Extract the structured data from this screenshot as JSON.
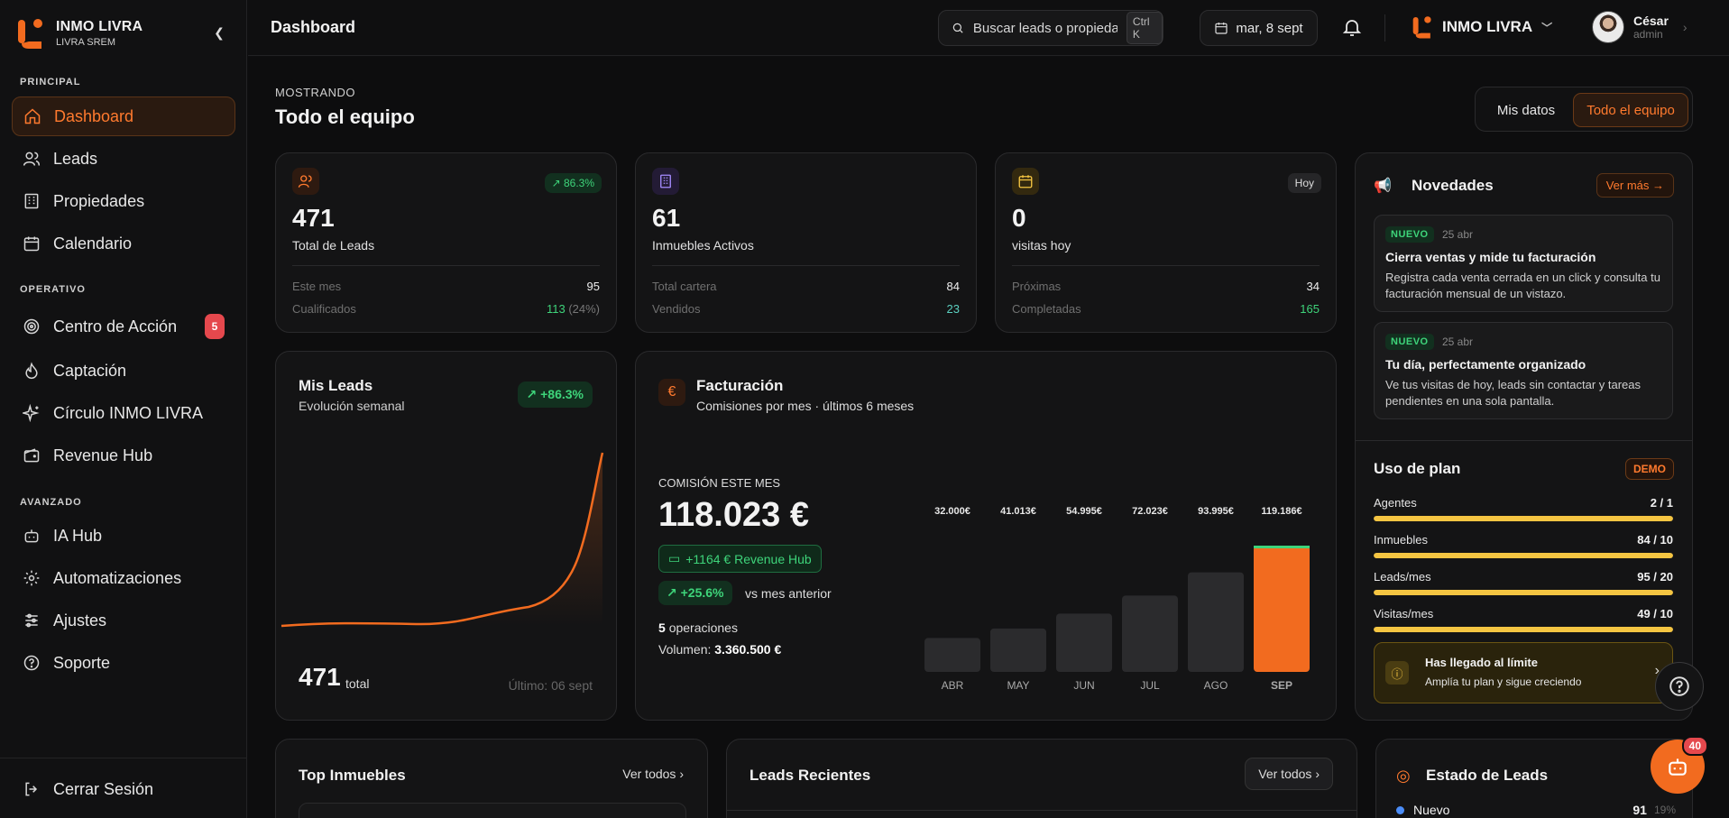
{
  "brand": {
    "name": "INMO LIVRA",
    "sub": "LIVRA SREM"
  },
  "sidebar": {
    "sections": [
      {
        "label": "PRINCIPAL"
      },
      {
        "label": "OPERATIVO"
      },
      {
        "label": "AVANZADO"
      }
    ],
    "items": [
      {
        "label": "Dashboard",
        "icon": "home-icon"
      },
      {
        "label": "Leads",
        "icon": "users-icon"
      },
      {
        "label": "Propiedades",
        "icon": "building-icon"
      },
      {
        "label": "Calendario",
        "icon": "calendar-icon"
      },
      {
        "label": "Centro de Acción",
        "icon": "target-icon",
        "badge": "5"
      },
      {
        "label": "Captación",
        "icon": "flame-icon"
      },
      {
        "label": "Círculo INMO LIVRA",
        "icon": "sparkle-icon"
      },
      {
        "label": "Revenue Hub",
        "icon": "wallet-icon"
      },
      {
        "label": "IA Hub",
        "icon": "robot-icon"
      },
      {
        "label": "Automatizaciones",
        "icon": "gear-icon"
      },
      {
        "label": "Ajustes",
        "icon": "sliders-icon"
      },
      {
        "label": "Soporte",
        "icon": "help-icon"
      }
    ],
    "logout": "Cerrar Sesión"
  },
  "topbar": {
    "title": "Dashboard",
    "search_placeholder": "Buscar leads o propiedades",
    "shortcut": "Ctrl K",
    "date": "mar, 8 sept",
    "org": "INMO LIVRA",
    "user_name": "César",
    "user_role": "admin"
  },
  "view": {
    "showing": "MOSTRANDO",
    "title": "Todo el equipo",
    "toggle_a": "Mis datos",
    "toggle_b": "Todo el equipo"
  },
  "stats": [
    {
      "value": "471",
      "label": "Total de Leads",
      "badge": "86.3%",
      "rows": [
        {
          "k": "Este mes",
          "v": "95"
        },
        {
          "k": "Cualificados",
          "v": "113",
          "extra": "(24%)"
        }
      ]
    },
    {
      "value": "61",
      "label": "Inmuebles Activos",
      "rows": [
        {
          "k": "Total cartera",
          "v": "84"
        },
        {
          "k": "Vendidos",
          "v": "23"
        }
      ]
    },
    {
      "value": "0",
      "label": "visitas hoy",
      "badge": "Hoy",
      "rows": [
        {
          "k": "Próximas",
          "v": "34"
        },
        {
          "k": "Completadas",
          "v": "165"
        }
      ]
    }
  ],
  "leads_card": {
    "title": "Mis Leads",
    "subtitle": "Evolución semanal",
    "badge": "+86.3%",
    "total": "471",
    "total_label": "total",
    "last": "Último: 06 sept"
  },
  "billing": {
    "title": "Facturación",
    "subtitle": "Comisiones por mes · últimos 6 meses",
    "kicker": "COMISIÓN ESTE MES",
    "amount": "118.023 €",
    "revenue_hub": "+1164 € Revenue Hub",
    "change": "+25.6%",
    "change_label": "vs mes anterior",
    "ops_count": "5",
    "ops_label": "operaciones",
    "volume_label": "Volumen:",
    "volume": "3.360.500 €"
  },
  "chart_data": {
    "type": "bar",
    "categories": [
      "ABR",
      "MAY",
      "JUN",
      "JUL",
      "AGO",
      "SEP"
    ],
    "values": [
      32000,
      41013,
      54995,
      72023,
      93995,
      119186
    ],
    "data_labels": [
      "32.000€",
      "41.013€",
      "54.995€",
      "72.023€",
      "93.995€",
      "119.186€"
    ],
    "highlight_index": 5,
    "colors": {
      "bar": "#2b2b2d",
      "highlight": "#f26b1f"
    }
  },
  "news": {
    "title": "Novedades",
    "more": "Ver más →",
    "items": [
      {
        "tag": "NUEVO",
        "date": "25 abr",
        "title": "Cierra ventas y mide tu facturación",
        "body": "Registra cada venta cerrada en un click y consulta tu facturación mensual de un vistazo."
      },
      {
        "tag": "NUEVO",
        "date": "25 abr",
        "title": "Tu día, perfectamente organizado",
        "body": "Ve tus visitas de hoy, leads sin contactar y tareas pendientes en una sola pantalla."
      }
    ]
  },
  "plan": {
    "title": "Uso de plan",
    "badge": "DEMO",
    "rows": [
      {
        "label": "Agentes",
        "value": "2 / 1",
        "fill": 1.0
      },
      {
        "label": "Inmuebles",
        "value": "84 / 10",
        "fill": 1.0
      },
      {
        "label": "Leads/mes",
        "value": "95 / 20",
        "fill": 1.0
      },
      {
        "label": "Visitas/mes",
        "value": "49 / 10",
        "fill": 1.0
      }
    ],
    "limit_title": "Has llegado al límite",
    "limit_body": "Amplía tu plan y sigue creciendo"
  },
  "bottom": {
    "top_props": "Top Inmuebles",
    "top_props_link": "Ver todos",
    "recent": "Leads Recientes",
    "recent_link": "Ver todos",
    "status": "Estado de Leads",
    "status_row": {
      "label": "Nuevo",
      "value": "91",
      "pct": "19%"
    }
  },
  "fab": {
    "badge": "40"
  },
  "colors": {
    "accent": "#ff7a2e",
    "green": "#3ed47a",
    "yellow": "#f5c542"
  }
}
